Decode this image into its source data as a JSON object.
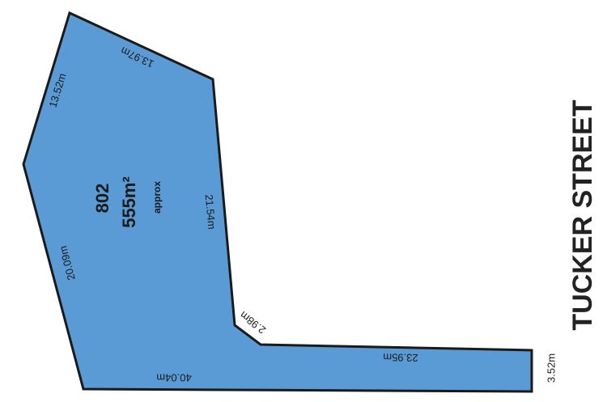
{
  "plan": {
    "lot_number": "802",
    "area": "555m²",
    "area_note": "approx",
    "street": "TUCKER STREET",
    "dimensions": [
      "13.97m",
      "13.52m",
      "21.54m",
      "2.98m",
      "23.95m",
      "40.04m",
      "20.09m",
      "3.52m"
    ]
  }
}
